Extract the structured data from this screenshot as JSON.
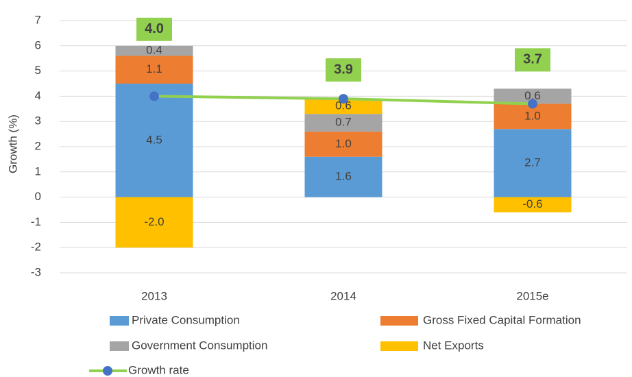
{
  "chart_data": {
    "type": "bar",
    "stacked": true,
    "y_label": "Growth (%)",
    "categories": [
      "2013",
      "2014",
      "2015e"
    ],
    "series": [
      {
        "name": "Private Consumption",
        "color": "#5b9bd5",
        "values": [
          4.5,
          1.6,
          2.7
        ],
        "value_labels": [
          "4.5",
          "1.6",
          "2.7"
        ]
      },
      {
        "name": "Gross Fixed Capital Formation",
        "color": "#ed7d31",
        "values": [
          1.1,
          1.0,
          1.0
        ],
        "value_labels": [
          "1.1",
          "1.0",
          "1.0"
        ]
      },
      {
        "name": "Government Consumption",
        "color": "#a5a5a5",
        "values": [
          0.4,
          0.7,
          0.6
        ],
        "value_labels": [
          "0.4",
          "0.7",
          "0.6"
        ]
      },
      {
        "name": "Net Exports",
        "color": "#ffc000",
        "values": [
          -2.0,
          0.6,
          -0.6
        ],
        "value_labels": [
          "-2.0",
          "0.6",
          "-0.6"
        ]
      },
      {
        "name": "Growth rate",
        "type": "line",
        "color": "#92d050",
        "marker_color": "#4472c4",
        "values": [
          4.0,
          3.9,
          3.7
        ],
        "value_labels": [
          "4.0",
          "3.9",
          "3.7"
        ]
      }
    ],
    "ylim": [
      -3,
      7
    ],
    "yticks": [
      -3,
      -2,
      -1,
      0,
      1,
      2,
      3,
      4,
      5,
      6,
      7
    ],
    "grid": true
  }
}
